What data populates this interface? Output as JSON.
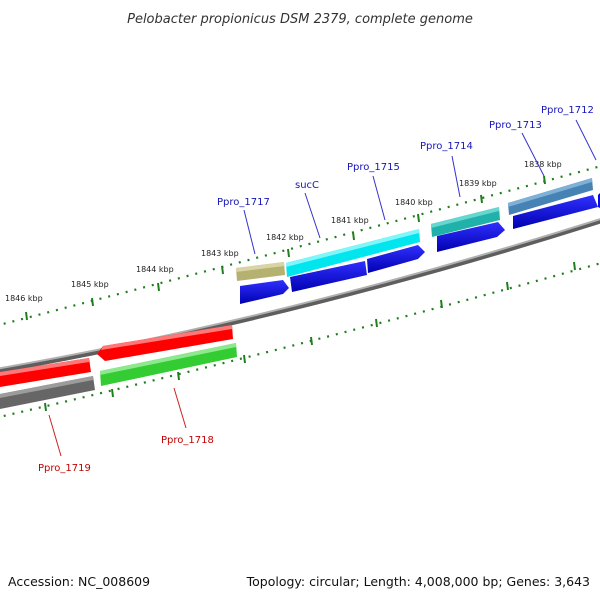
{
  "title": "Pelobacter propionicus DSM 2379, complete genome",
  "footer": {
    "accession": "Accession: NC_008609",
    "summary": "Topology: circular; Length: 4,008,000 bp; Genes: 3,643"
  },
  "colors": {
    "backbone": "#8c8c8c",
    "ticks": "#1f7f1f",
    "cds_blue": "#0a0ae0",
    "label_blue": "#1515b8",
    "label_red": "#c40000",
    "leader_blue": "#3333cc",
    "leader_red": "#cc2222"
  },
  "kbp_ticks": [
    "1838 kbp",
    "1839 kbp",
    "1840 kbp",
    "1841 kbp",
    "1842 kbp",
    "1843 kbp",
    "1844 kbp",
    "1845 kbp",
    "1846 kbp"
  ],
  "genes": [
    {
      "id": "g1712",
      "label": "Ppro_1712",
      "strand": "plus",
      "color": "#4682b4"
    },
    {
      "id": "g1713",
      "label": "Ppro_1713",
      "strand": "plus",
      "color": "#4682b4"
    },
    {
      "id": "g1714",
      "label": "Ppro_1714",
      "strand": "plus",
      "color": "#20b2aa"
    },
    {
      "id": "g1715",
      "label": "Ppro_1715",
      "strand": "plus",
      "color": "#00e5ee"
    },
    {
      "id": "gsucC",
      "label": "sucC",
      "strand": "plus",
      "color": "#00e5ee"
    },
    {
      "id": "g1717",
      "label": "Ppro_1717",
      "strand": "plus",
      "color": "#b5b170"
    },
    {
      "id": "g1718",
      "label": "Ppro_1718",
      "strand": "minus",
      "color": "#33cc33"
    },
    {
      "id": "g1719",
      "label": "Ppro_1719",
      "strand": "minus",
      "color": "#666666"
    }
  ]
}
